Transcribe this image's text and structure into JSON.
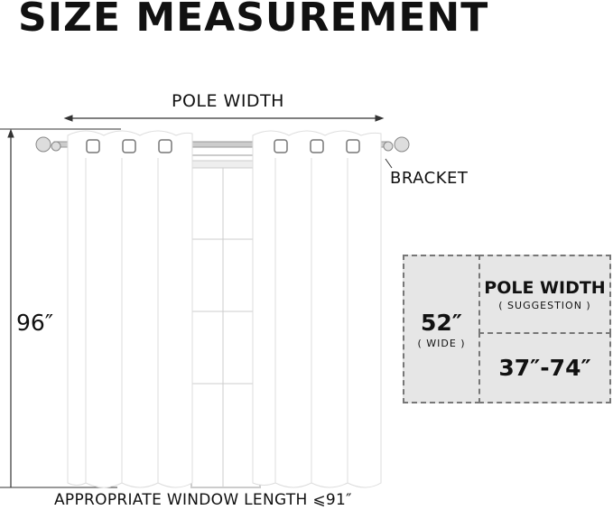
{
  "title": "SIZE MEASUREMENT",
  "diagram": {
    "pole_width_label": "POLE WIDTH",
    "bracket_label": "BRACKET",
    "height_label": "96″",
    "window_length_label": "APPROPRIATE WINDOW LENGTH ⩽91″"
  },
  "size_table": {
    "width_value": "52″",
    "width_note": "( WIDE )",
    "pole_header": "POLE WIDTH",
    "pole_note": "( SUGGESTION )",
    "pole_range": "37″-74″"
  },
  "colors": {
    "box_fill": "#e6e6e6",
    "dash": "#777777",
    "text": "#111111"
  }
}
